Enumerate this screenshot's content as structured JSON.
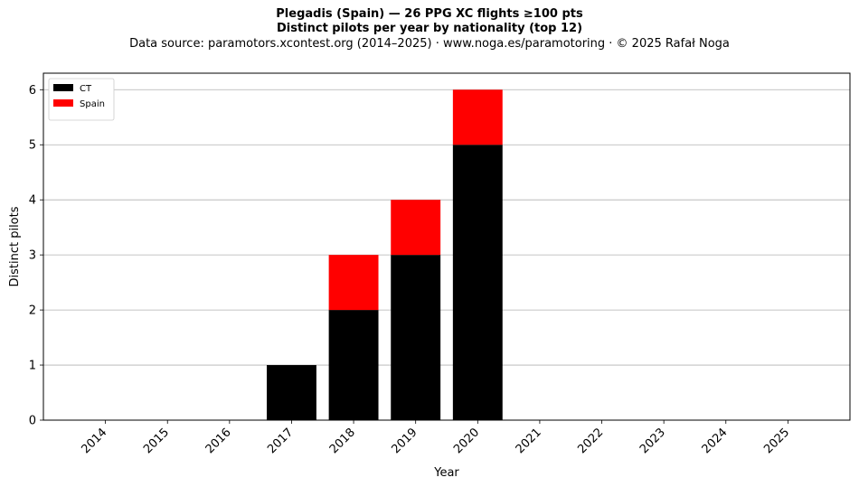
{
  "title": "Plegadis (Spain)  —  26 PPG XC flights ≥100 pts",
  "subtitle": "Distinct pilots per year by nationality (top 12)",
  "source_line": "Data source: paramotors.xcontest.org (2014–2025)  ·  www.noga.es/paramotoring  ·  © 2025 Rafał Noga",
  "chart_data": {
    "type": "bar",
    "stacked": true,
    "categories": [
      "2014",
      "2015",
      "2016",
      "2017",
      "2018",
      "2019",
      "2020",
      "2021",
      "2022",
      "2023",
      "2024",
      "2025"
    ],
    "series": [
      {
        "name": "CT",
        "color": "#000000",
        "values": [
          0,
          0,
          0,
          1,
          2,
          3,
          5,
          0,
          0,
          0,
          0,
          0
        ]
      },
      {
        "name": "Spain",
        "color": "#ff0000",
        "values": [
          0,
          0,
          0,
          0,
          1,
          1,
          1,
          0,
          0,
          0,
          0,
          0
        ]
      }
    ],
    "xlabel": "Year",
    "ylabel": "Distinct pilots",
    "ylim": [
      0,
      6.3
    ],
    "yticks": [
      0,
      1,
      2,
      3,
      4,
      5,
      6
    ],
    "grid": "horizontal",
    "legend_position": "top-left"
  }
}
